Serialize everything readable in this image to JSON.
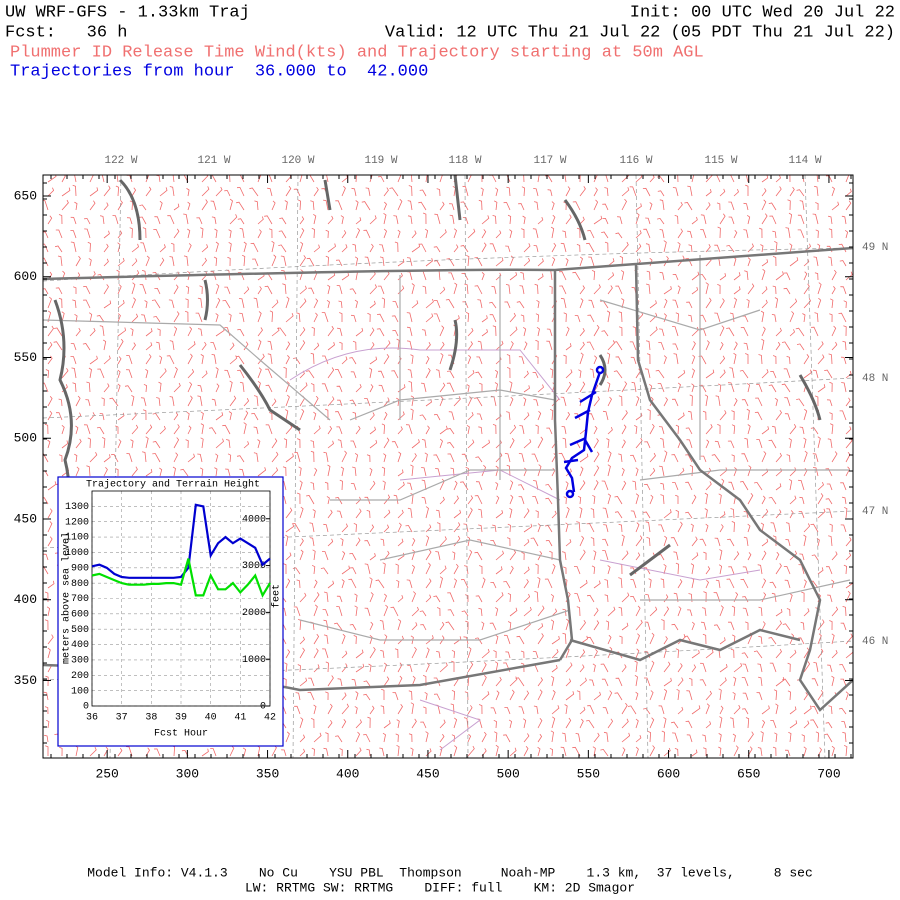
{
  "header": {
    "title": "UW WRF-GFS - 1.33km Traj",
    "init": "Init: 00 UTC Wed 20 Jul 22",
    "forecast": "Fcst:   36 h",
    "valid": "Valid: 12 UTC Thu 21 Jul 22 (05 PDT Thu 21 Jul 22)",
    "subtitle": "Plummer ID Release Time Wind(kts) and Trajectory starting at 50m AGL",
    "trajectory_hours": "Trajectories from hour  36.000 to  42.000"
  },
  "map": {
    "xlim": [
      210,
      715
    ],
    "ylim": [
      302,
      663
    ],
    "xticks": [
      250,
      300,
      350,
      400,
      450,
      500,
      550,
      600,
      650,
      700
    ],
    "yticks": [
      350,
      400,
      450,
      500,
      550,
      600,
      650
    ],
    "lon_labels": [
      "122 W",
      "121 W",
      "120 W",
      "119 W",
      "118 W",
      "117 W",
      "116 W",
      "115 W",
      "114 W"
    ],
    "lat_labels": [
      "49 N",
      "48 N",
      "47 N",
      "46 N"
    ]
  },
  "chart_data": {
    "type": "line",
    "title": "Trajectory and Terrain Height",
    "x_label": "Fcst Hour",
    "y_label": "meters above sea level",
    "y2_label": "feet",
    "x": [
      36,
      36.25,
      36.5,
      36.75,
      37,
      37.25,
      37.5,
      37.75,
      38,
      38.25,
      38.5,
      38.75,
      39,
      39.25,
      39.5,
      39.75,
      40,
      40.25,
      40.5,
      40.75,
      41,
      41.25,
      41.5,
      41.75,
      42
    ],
    "series": [
      {
        "color": "#0000d0",
        "values": [
          910,
          920,
          900,
          860,
          840,
          835,
          835,
          835,
          835,
          835,
          835,
          835,
          840,
          900,
          1310,
          1300,
          980,
          1060,
          1100,
          1060,
          1090,
          1060,
          1030,
          920,
          960
        ]
      },
      {
        "color": "#00e000",
        "values": [
          850,
          860,
          840,
          820,
          800,
          790,
          790,
          790,
          795,
          795,
          800,
          800,
          790,
          960,
          720,
          720,
          850,
          760,
          760,
          800,
          740,
          790,
          850,
          720,
          800
        ]
      }
    ],
    "xlim": [
      36,
      42
    ],
    "xticks": [
      36,
      37,
      38,
      39,
      40,
      41,
      42
    ],
    "ylim": [
      0,
      1400
    ],
    "yticks": [
      0,
      100,
      200,
      300,
      400,
      500,
      600,
      700,
      800,
      900,
      1000,
      1100,
      1200,
      1300
    ],
    "y2lim": [
      0,
      4593
    ],
    "y2ticks": [
      0,
      1000,
      2000,
      3000,
      4000
    ],
    "grid": true
  },
  "footer": {
    "line1": "Model Info: V4.1.3    No Cu    YSU PBL  Thompson     Noah-MP    1.3 km,  37 levels,     8 sec",
    "line2": "LW: RRTMG SW: RRTMG    DIFF: full    KM: 2D Smagor"
  }
}
